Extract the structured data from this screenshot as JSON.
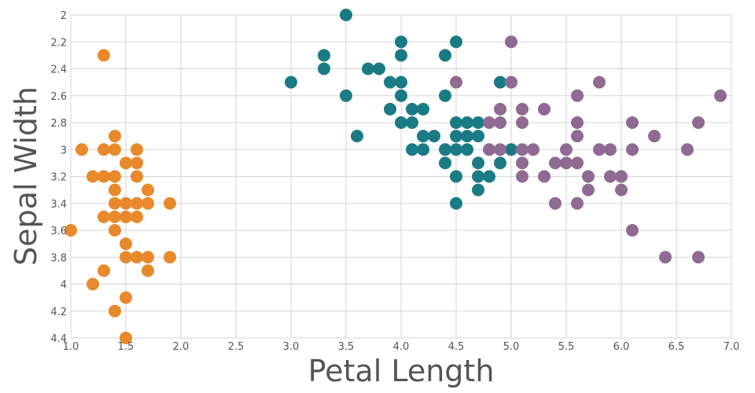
{
  "chart_data": {
    "type": "scatter",
    "title": "",
    "xlabel": "Petal Length",
    "ylabel": "Sepal Width",
    "xlim": [
      1.0,
      7.0
    ],
    "ylim": [
      2.0,
      4.4
    ],
    "y_inverted": true,
    "grid": true,
    "legend": "none",
    "x_ticks": [
      "1.0",
      "1.5",
      "2.0",
      "2.5",
      "3.0",
      "3.5",
      "4.0",
      "4.5",
      "5.0",
      "5.5",
      "6.0",
      "6.5",
      "7.0"
    ],
    "y_ticks": [
      "2",
      "2.2",
      "2.4",
      "2.6",
      "2.8",
      "3",
      "3.2",
      "3.4",
      "3.6",
      "3.8",
      "4",
      "4.2",
      "4.4"
    ],
    "series": [
      {
        "color": "#E8892B",
        "points": [
          [
            1.3,
            2.3
          ],
          [
            1.4,
            2.9
          ],
          [
            1.1,
            3.0
          ],
          [
            1.3,
            3.0
          ],
          [
            1.4,
            3.0
          ],
          [
            1.6,
            3.0
          ],
          [
            1.5,
            3.1
          ],
          [
            1.6,
            3.1
          ],
          [
            1.2,
            3.2
          ],
          [
            1.3,
            3.2
          ],
          [
            1.4,
            3.2
          ],
          [
            1.6,
            3.2
          ],
          [
            1.4,
            3.3
          ],
          [
            1.7,
            3.3
          ],
          [
            1.4,
            3.4
          ],
          [
            1.5,
            3.4
          ],
          [
            1.6,
            3.4
          ],
          [
            1.7,
            3.4
          ],
          [
            1.9,
            3.4
          ],
          [
            1.3,
            3.5
          ],
          [
            1.4,
            3.5
          ],
          [
            1.5,
            3.5
          ],
          [
            1.6,
            3.5
          ],
          [
            1.0,
            3.6
          ],
          [
            1.4,
            3.6
          ],
          [
            1.5,
            3.7
          ],
          [
            1.5,
            3.8
          ],
          [
            1.6,
            3.8
          ],
          [
            1.7,
            3.8
          ],
          [
            1.9,
            3.8
          ],
          [
            1.3,
            3.9
          ],
          [
            1.7,
            3.9
          ],
          [
            1.2,
            4.0
          ],
          [
            1.5,
            4.1
          ],
          [
            1.4,
            4.2
          ],
          [
            1.5,
            4.4
          ]
        ]
      },
      {
        "color": "#1A7B84",
        "points": [
          [
            3.5,
            2.0
          ],
          [
            4.0,
            2.2
          ],
          [
            4.5,
            2.2
          ],
          [
            3.3,
            2.3
          ],
          [
            4.0,
            2.3
          ],
          [
            4.4,
            2.3
          ],
          [
            3.3,
            2.4
          ],
          [
            3.7,
            2.4
          ],
          [
            3.8,
            2.4
          ],
          [
            3.0,
            2.5
          ],
          [
            3.9,
            2.5
          ],
          [
            4.0,
            2.5
          ],
          [
            4.9,
            2.5
          ],
          [
            3.5,
            2.6
          ],
          [
            4.0,
            2.6
          ],
          [
            4.4,
            2.6
          ],
          [
            3.9,
            2.7
          ],
          [
            4.1,
            2.7
          ],
          [
            4.2,
            2.7
          ],
          [
            4.0,
            2.8
          ],
          [
            4.1,
            2.8
          ],
          [
            4.5,
            2.8
          ],
          [
            4.6,
            2.8
          ],
          [
            4.7,
            2.8
          ],
          [
            3.6,
            2.9
          ],
          [
            4.2,
            2.9
          ],
          [
            4.3,
            2.9
          ],
          [
            4.5,
            2.9
          ],
          [
            4.6,
            2.9
          ],
          [
            4.7,
            2.9
          ],
          [
            4.1,
            3.0
          ],
          [
            4.2,
            3.0
          ],
          [
            4.4,
            3.0
          ],
          [
            4.5,
            3.0
          ],
          [
            4.6,
            3.0
          ],
          [
            5.0,
            3.0
          ],
          [
            4.4,
            3.1
          ],
          [
            4.7,
            3.1
          ],
          [
            4.9,
            3.1
          ],
          [
            4.5,
            3.2
          ],
          [
            4.7,
            3.2
          ],
          [
            4.8,
            3.2
          ],
          [
            4.7,
            3.3
          ],
          [
            4.5,
            3.4
          ]
        ]
      },
      {
        "color": "#8F6A92",
        "points": [
          [
            5.0,
            2.2
          ],
          [
            4.5,
            2.5
          ],
          [
            5.0,
            2.5
          ],
          [
            5.8,
            2.5
          ],
          [
            6.9,
            2.6
          ],
          [
            5.6,
            2.6
          ],
          [
            4.9,
            2.7
          ],
          [
            5.1,
            2.7
          ],
          [
            5.3,
            2.7
          ],
          [
            4.8,
            2.8
          ],
          [
            4.9,
            2.8
          ],
          [
            5.1,
            2.8
          ],
          [
            5.6,
            2.8
          ],
          [
            6.1,
            2.8
          ],
          [
            6.7,
            2.8
          ],
          [
            5.6,
            2.9
          ],
          [
            6.3,
            2.9
          ],
          [
            4.8,
            3.0
          ],
          [
            4.9,
            3.0
          ],
          [
            5.1,
            3.0
          ],
          [
            5.2,
            3.0
          ],
          [
            5.5,
            3.0
          ],
          [
            5.8,
            3.0
          ],
          [
            5.9,
            3.0
          ],
          [
            6.1,
            3.0
          ],
          [
            6.6,
            3.0
          ],
          [
            5.1,
            3.1
          ],
          [
            5.4,
            3.1
          ],
          [
            5.5,
            3.1
          ],
          [
            5.6,
            3.1
          ],
          [
            5.1,
            3.2
          ],
          [
            5.3,
            3.2
          ],
          [
            5.7,
            3.2
          ],
          [
            5.9,
            3.2
          ],
          [
            6.0,
            3.2
          ],
          [
            5.7,
            3.3
          ],
          [
            6.0,
            3.3
          ],
          [
            5.4,
            3.4
          ],
          [
            5.6,
            3.4
          ],
          [
            6.1,
            3.6
          ],
          [
            6.4,
            3.8
          ],
          [
            6.7,
            3.8
          ]
        ]
      }
    ]
  }
}
